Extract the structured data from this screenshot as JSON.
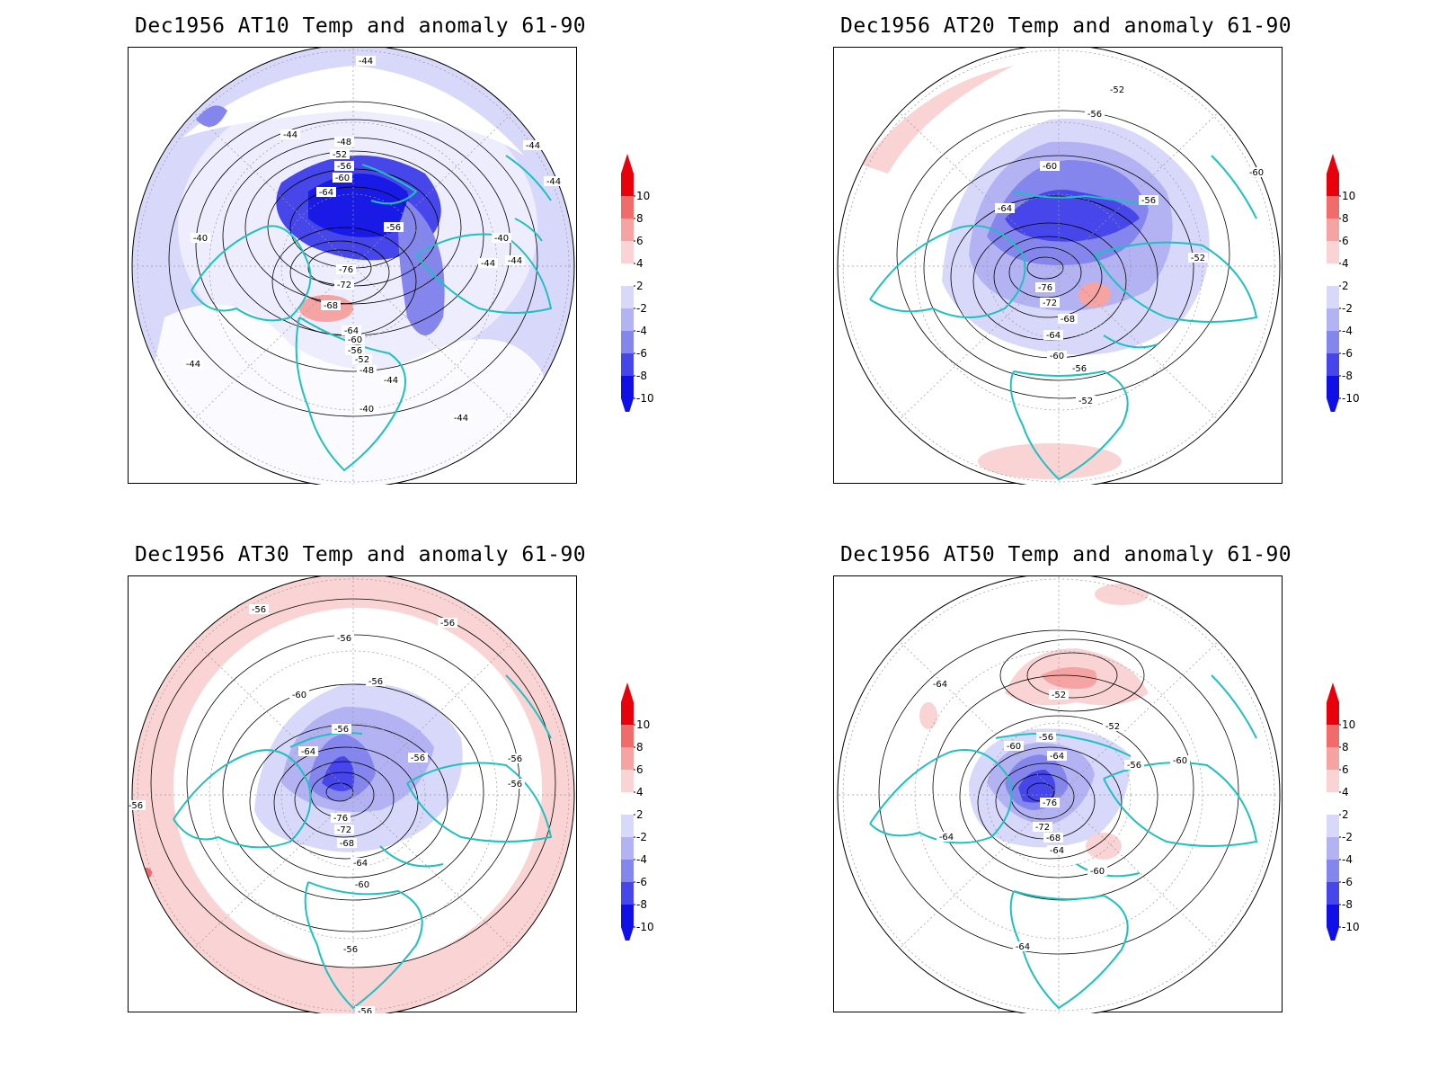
{
  "panels": [
    {
      "id": "at10",
      "title": "Dec1956 AT10 Temp and anomaly 61-90",
      "contour_labels": [
        "-44",
        "-44",
        "-44",
        "-44",
        "-48",
        "-52",
        "-56",
        "-60",
        "-64",
        "-56",
        "-40",
        "-40",
        "-44",
        "-44",
        "-76",
        "-72",
        "-68",
        "-64",
        "-60",
        "-56",
        "-52",
        "-48",
        "-44",
        "-40",
        "-44",
        "-44"
      ]
    },
    {
      "id": "at20",
      "title": "Dec1956 AT20 Temp and anomaly 61-90",
      "contour_labels": [
        "-52",
        "-56",
        "-60",
        "-56",
        "-60",
        "-64",
        "-52",
        "-76",
        "-72",
        "-68",
        "-64",
        "-60",
        "-56",
        "-52"
      ]
    },
    {
      "id": "at30",
      "title": "Dec1956 AT30 Temp and anomaly 61-90",
      "contour_labels": [
        "-56",
        "-56",
        "-56",
        "-56",
        "-60",
        "-56",
        "-64",
        "-56",
        "-56",
        "-56",
        "-76",
        "-72",
        "-68",
        "-64",
        "-60",
        "-56",
        "-56",
        "-56"
      ]
    },
    {
      "id": "at50",
      "title": "Dec1956 AT50 Temp and anomaly 61-90",
      "contour_labels": [
        "-64",
        "-52",
        "-56",
        "-60",
        "-64",
        "-52",
        "-56",
        "-60",
        "-76",
        "-72",
        "-68",
        "-64",
        "-64",
        "-60",
        "-64"
      ]
    }
  ],
  "colorbar": {
    "labels": [
      "10",
      "8",
      "6",
      "4",
      "2",
      "-2",
      "-4",
      "-6",
      "-8",
      "-10"
    ],
    "colors": [
      "#e8000b",
      "#f26b6b",
      "#f6a3a3",
      "#fad4d4",
      "#ffffff",
      "#d8d8fb",
      "#b3b3f4",
      "#8585ee",
      "#4646ea",
      "#1010e6"
    ],
    "over_color": "#e8000b",
    "under_color": "#1010e6"
  },
  "coastline_color": "#20c0c0"
}
